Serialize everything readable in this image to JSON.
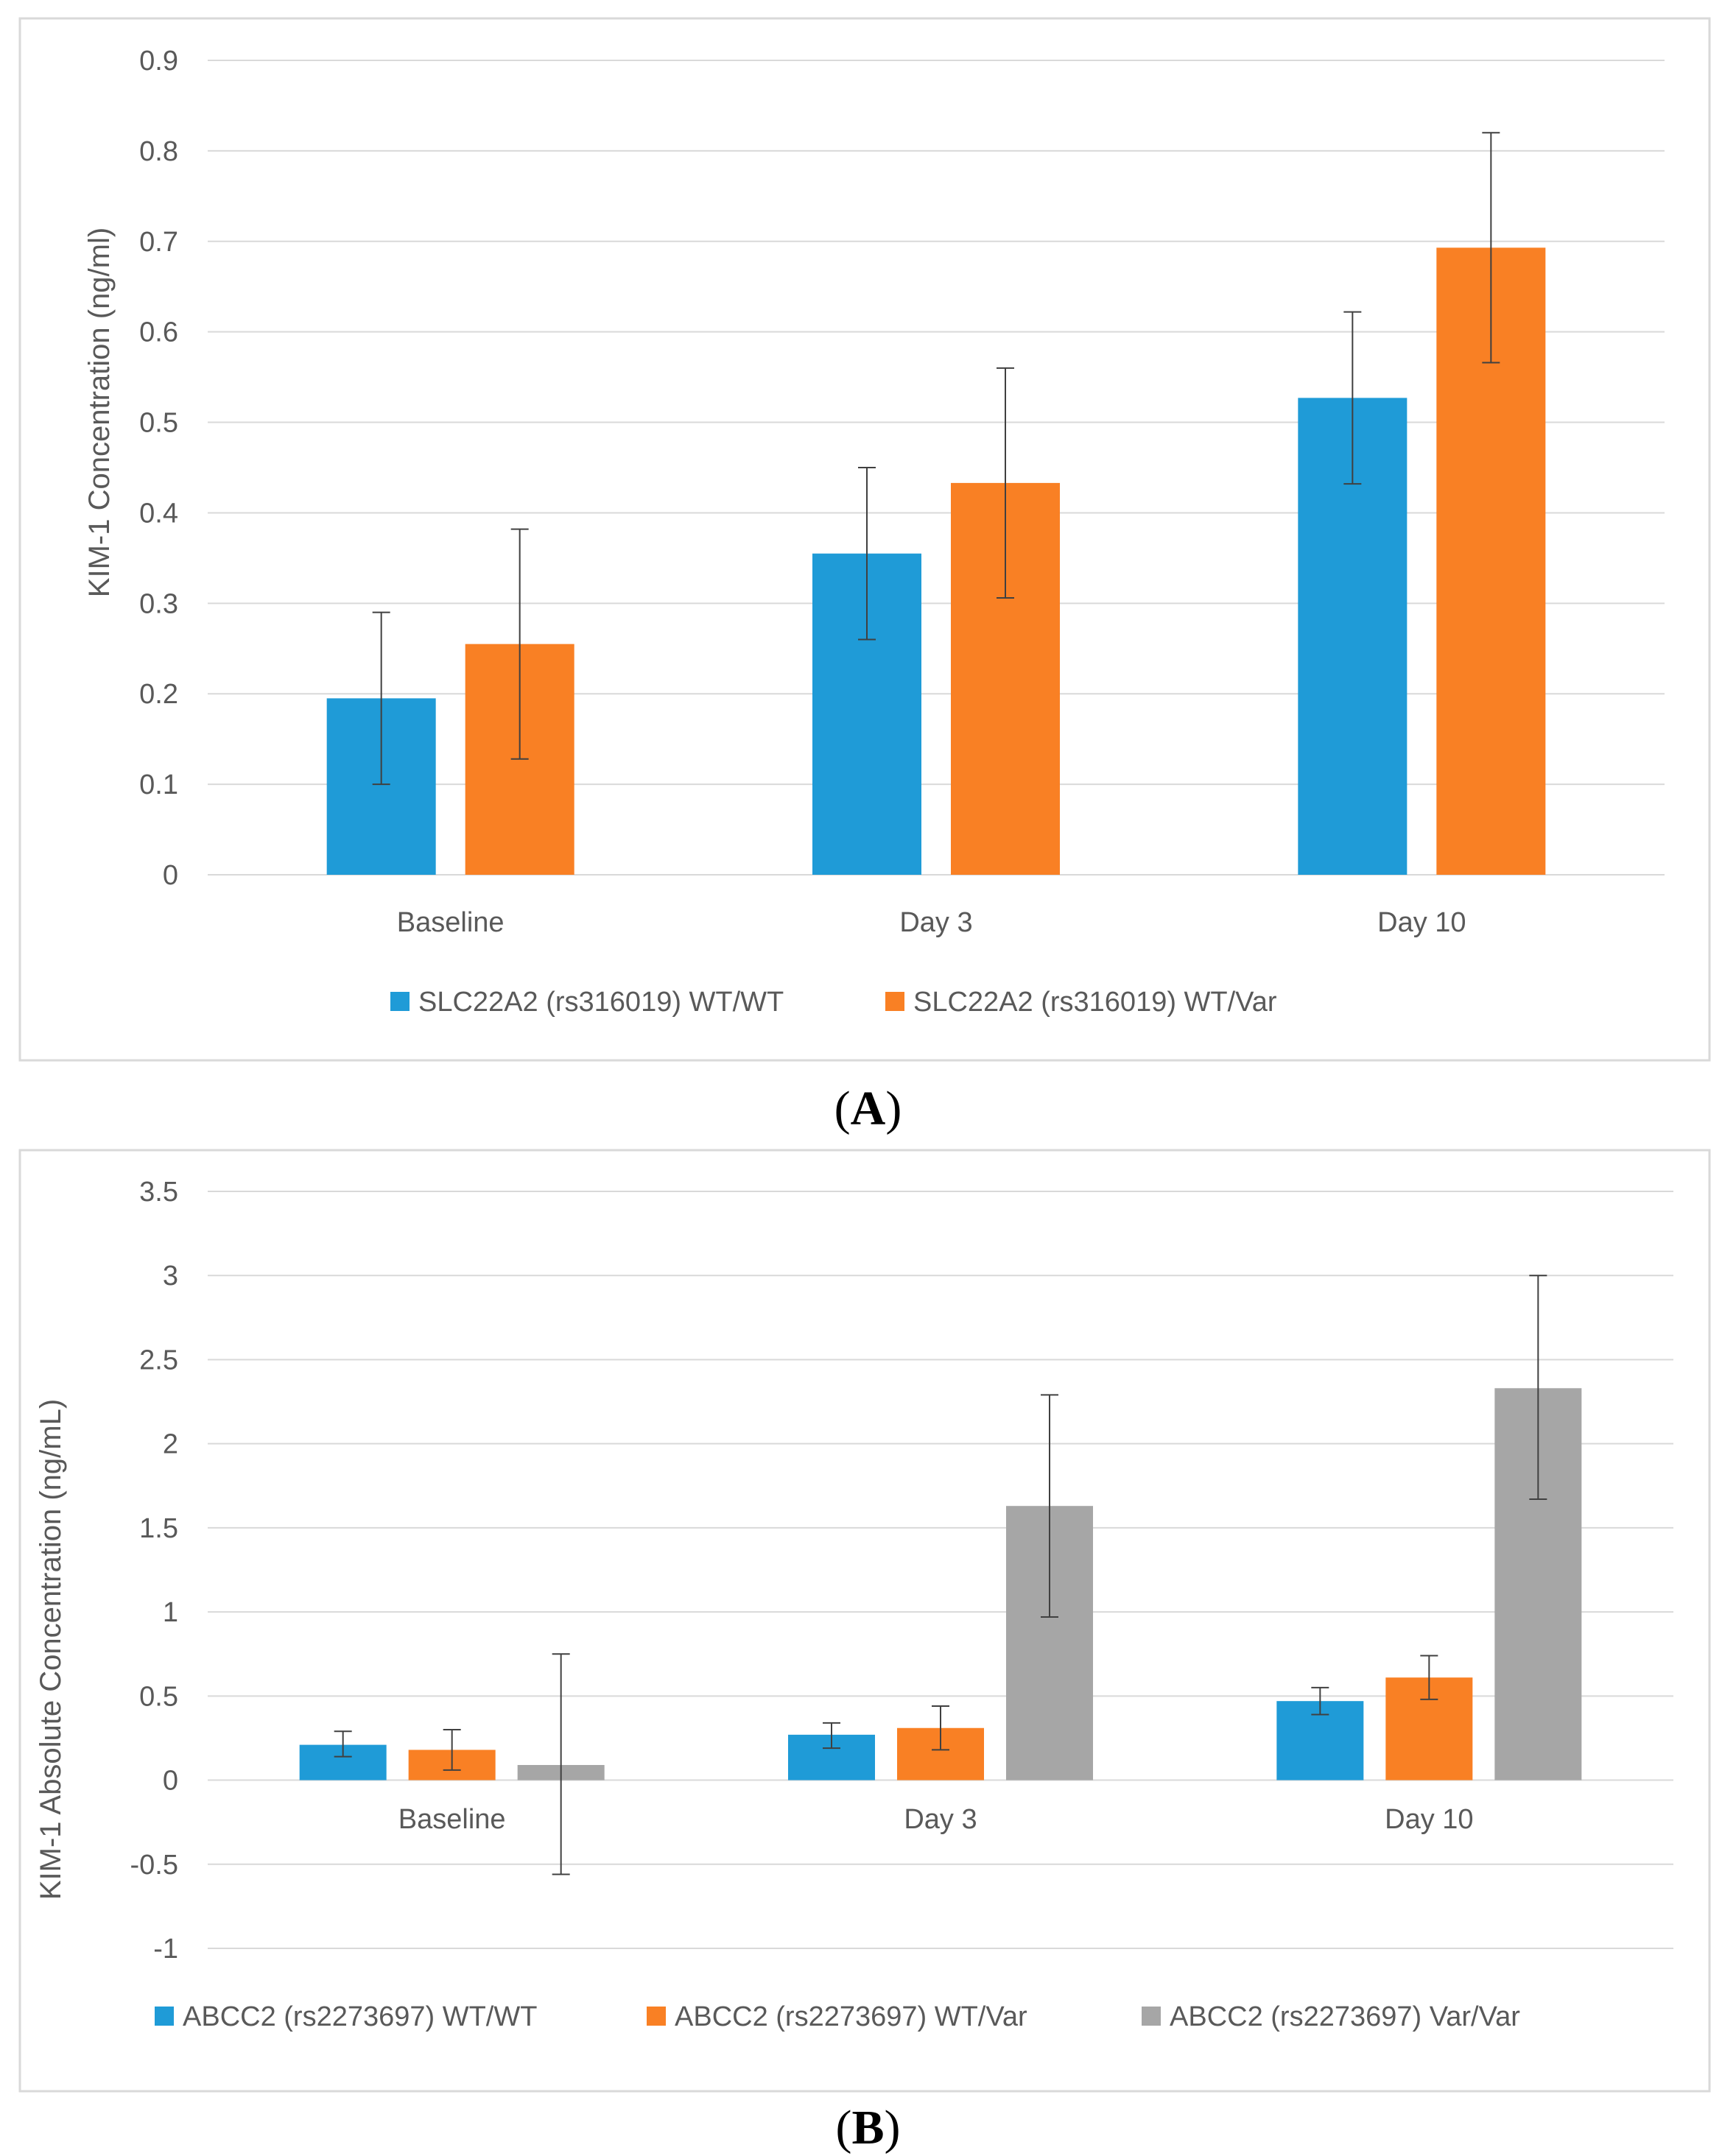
{
  "figure": {
    "panel_a_label": "A",
    "panel_b_label": "B"
  },
  "colors": {
    "blue": "#1f9bd7",
    "orange": "#f98024",
    "gray": "#a6a6a6",
    "grid": "#d9d9d9",
    "axis_text": "#595959",
    "frame": "#d9d9d9",
    "error_bar": "#404040"
  },
  "chart_data": [
    {
      "type": "bar",
      "title": "",
      "xlabel": "",
      "ylabel": "KIM-1  Concentration (ng/ml)",
      "ylim": [
        0,
        0.9
      ],
      "yticks": [
        0,
        0.1,
        0.2,
        0.3,
        0.4,
        0.5,
        0.6,
        0.7,
        0.8,
        0.9
      ],
      "ytick_labels": [
        "0",
        "0.1",
        "0.2",
        "0.3",
        "0.4",
        "0.5",
        "0.6",
        "0.7",
        "0.8",
        "0.9"
      ],
      "grid": true,
      "legend_position": "bottom",
      "categories": [
        "Baseline",
        "Day 3",
        "Day 10"
      ],
      "series": [
        {
          "name": "SLC22A2 (rs316019) WT/WT",
          "color": "#1f9bd7",
          "values": [
            0.195,
            0.355,
            0.527
          ],
          "error_low": [
            0.1,
            0.26,
            0.432
          ],
          "error_high": [
            0.29,
            0.45,
            0.622
          ]
        },
        {
          "name": "SLC22A2 (rs316019) WT/Var",
          "color": "#f98024",
          "values": [
            0.255,
            0.433,
            0.693
          ],
          "error_low": [
            0.128,
            0.306,
            0.566
          ],
          "error_high": [
            0.382,
            0.56,
            0.82
          ]
        }
      ]
    },
    {
      "type": "bar",
      "title": "",
      "xlabel": "",
      "ylabel": "KIM-1 Absolute Concentration (ng/mL)",
      "ylim": [
        -1,
        3.5
      ],
      "yticks": [
        -1,
        -0.5,
        0,
        0.5,
        1,
        1.5,
        2,
        2.5,
        3,
        3.5
      ],
      "ytick_labels": [
        "-1",
        "-0.5",
        "0",
        "0.5",
        "1",
        "1.5",
        "2",
        "2.5",
        "3",
        "3.5"
      ],
      "grid": true,
      "legend_position": "bottom",
      "categories": [
        "Baseline",
        "Day 3",
        "Day 10"
      ],
      "series": [
        {
          "name": "ABCC2 (rs2273697) WT/WT",
          "color": "#1f9bd7",
          "values": [
            0.21,
            0.27,
            0.47
          ],
          "error_low": [
            0.14,
            0.19,
            0.39
          ],
          "error_high": [
            0.29,
            0.34,
            0.55
          ]
        },
        {
          "name": "ABCC2 (rs2273697) WT/Var",
          "color": "#f98024",
          "values": [
            0.18,
            0.31,
            0.61
          ],
          "error_low": [
            0.06,
            0.18,
            0.48
          ],
          "error_high": [
            0.3,
            0.44,
            0.74
          ]
        },
        {
          "name": "ABCC2 (rs2273697) Var/Var",
          "color": "#a6a6a6",
          "values": [
            0.09,
            1.63,
            2.33
          ],
          "error_low": [
            -0.56,
            0.97,
            1.67
          ],
          "error_high": [
            0.75,
            2.29,
            3.0
          ]
        }
      ]
    }
  ]
}
